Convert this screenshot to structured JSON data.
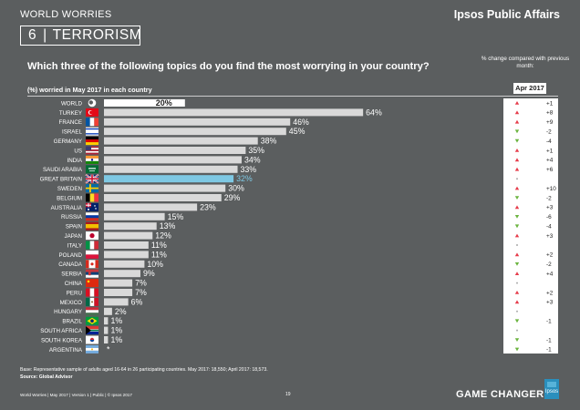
{
  "header": {
    "kicker": "WORLD WORRIES",
    "brand": "Ipsos Public Affairs",
    "section_number": "6",
    "section_separator": "|",
    "section_title": "TERRORISM"
  },
  "question": "Which three of the following topics do you find the most worrying in your country?",
  "change_header": "% change compared with previous month:",
  "subtitle": "(%) worried in May 2017 in each country",
  "comparison_period": "Apr 2017",
  "chart_data": {
    "type": "bar",
    "orientation": "horizontal",
    "xlim": [
      0,
      100
    ],
    "grid": false,
    "highlight_category": "GREAT BRITAIN",
    "colors": {
      "bar": "#d9d9d9",
      "world_bar": "#ffffff",
      "highlight_bar": "#7ec8e3",
      "up": "#e63c4b",
      "down": "#6bb43f",
      "same": "#aaaaaa"
    },
    "categories": [
      "WORLD",
      "TURKEY",
      "FRANCE",
      "ISRAEL",
      "GERMANY",
      "US",
      "INDIA",
      "SAUDI ARABIA",
      "GREAT BRITAIN",
      "SWEDEN",
      "BELGIUM",
      "AUSTRALIA",
      "RUSSIA",
      "SPAIN",
      "JAPAN",
      "ITALY",
      "POLAND",
      "CANADA",
      "SERBIA",
      "CHINA",
      "PERU",
      "MEXICO",
      "HUNGARY",
      "BRAZIL",
      "SOUTH AFRICA",
      "SOUTH KOREA",
      "ARGENTINA"
    ],
    "values": [
      20,
      64,
      46,
      45,
      38,
      35,
      34,
      33,
      32,
      30,
      29,
      23,
      15,
      13,
      12,
      11,
      11,
      10,
      9,
      7,
      7,
      6,
      2,
      1,
      1,
      1,
      0
    ],
    "value_labels": [
      "20%",
      "64%",
      "46%",
      "45%",
      "38%",
      "35%",
      "34%",
      "33%",
      "32%",
      "30%",
      "29%",
      "23%",
      "15%",
      "13%",
      "12%",
      "11%",
      "11%",
      "10%",
      "9%",
      "7%",
      "7%",
      "6%",
      "2%",
      "1%",
      "1%",
      "1%",
      "*"
    ],
    "change_direction": [
      "up",
      "up",
      "up",
      "down",
      "down",
      "up",
      "up",
      "up",
      "same",
      "up",
      "down",
      "up",
      "down",
      "down",
      "up",
      "same",
      "up",
      "down",
      "up",
      "same",
      "up",
      "up",
      "same",
      "down",
      "same",
      "down",
      "down"
    ],
    "change_labels": [
      "+1",
      "+8",
      "+9",
      "-2",
      "-4",
      "+1",
      "+4",
      "+6",
      "",
      "+10",
      "-2",
      "+3",
      "-6",
      "-4",
      "+3",
      "",
      "+2",
      "-2",
      "+4",
      "",
      "+2",
      "+3",
      "",
      "-1",
      "",
      "-1",
      "-1"
    ],
    "flags": [
      "globe",
      "turkey",
      "france",
      "israel",
      "germany",
      "usa",
      "india",
      "saudi",
      "uk",
      "sweden",
      "belgium",
      "australia",
      "russia",
      "spain",
      "japan",
      "italy",
      "poland",
      "canada",
      "serbia",
      "china",
      "peru",
      "mexico",
      "hungary",
      "brazil",
      "southafrica",
      "korea",
      "argentina"
    ]
  },
  "footnotes": {
    "basis": "Base: Representative sample of adults aged 16-64 in 26 participating countries. May 2017: 18,550; April 2017: 18,573.",
    "source": "Source: Global Advisor"
  },
  "footer": {
    "left": "World Worries  |  May 2017  |  Version 1  |  Public  |  © Ipsos 2017",
    "page": "19",
    "tagline": "GAME CHANGERS",
    "logo_text": "Ipsos"
  }
}
